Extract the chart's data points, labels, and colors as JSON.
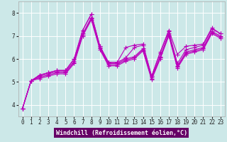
{
  "xlabel": "Windchill (Refroidissement éolien,°C)",
  "bg_color": "#cce8e8",
  "grid_color": "#ffffff",
  "line_color": "#bb00bb",
  "xlabel_bg": "#660066",
  "xlabel_fg": "#ffffff",
  "xlim": [
    -0.5,
    23.5
  ],
  "ylim": [
    3.5,
    8.5
  ],
  "yticks": [
    4,
    5,
    6,
    7,
    8
  ],
  "xticks": [
    0,
    1,
    2,
    3,
    4,
    5,
    6,
    7,
    8,
    9,
    10,
    11,
    12,
    13,
    14,
    15,
    16,
    17,
    18,
    19,
    20,
    21,
    22,
    23
  ],
  "series": [
    [
      3.85,
      5.05,
      5.3,
      5.4,
      5.5,
      5.5,
      6.0,
      7.25,
      7.95,
      6.55,
      5.85,
      5.85,
      6.05,
      6.5,
      6.6,
      5.25,
      6.25,
      7.2,
      5.8,
      6.4,
      6.5,
      6.6,
      7.3,
      7.1
    ],
    [
      3.85,
      5.05,
      5.25,
      5.35,
      5.45,
      5.45,
      5.9,
      7.1,
      7.8,
      6.5,
      5.8,
      5.8,
      6.0,
      6.1,
      6.45,
      5.2,
      6.1,
      7.1,
      5.7,
      6.3,
      6.4,
      6.5,
      7.2,
      7.0
    ],
    [
      3.85,
      5.05,
      5.2,
      5.3,
      5.4,
      5.4,
      5.85,
      7.05,
      7.75,
      6.45,
      5.75,
      5.75,
      5.95,
      6.05,
      6.4,
      5.15,
      6.05,
      7.05,
      5.65,
      6.25,
      6.35,
      6.45,
      7.15,
      6.95
    ],
    [
      3.85,
      5.05,
      5.15,
      5.25,
      5.35,
      5.35,
      5.8,
      7.0,
      7.7,
      6.4,
      5.7,
      5.7,
      5.9,
      6.0,
      6.35,
      5.1,
      6.0,
      7.0,
      5.6,
      6.2,
      6.3,
      6.4,
      7.1,
      6.9
    ],
    [
      3.85,
      5.05,
      5.3,
      5.4,
      5.5,
      5.5,
      6.0,
      7.25,
      7.95,
      6.55,
      5.85,
      5.85,
      6.5,
      6.6,
      6.65,
      5.25,
      6.3,
      7.25,
      6.2,
      6.55,
      6.6,
      6.65,
      7.35,
      7.1
    ]
  ]
}
